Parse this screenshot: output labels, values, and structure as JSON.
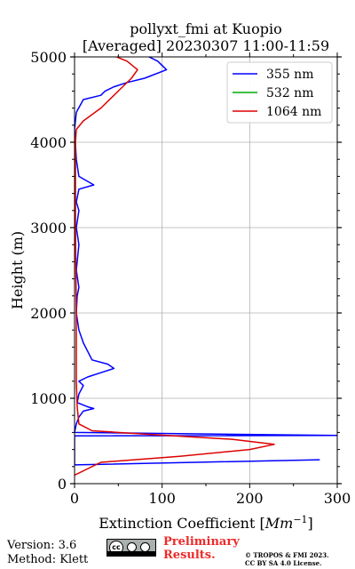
{
  "chart_data": {
    "type": "line",
    "title_line1": "pollyxt_fmi at Kuopio",
    "title_line2": "[Averaged] 20230307 11:00-11:59",
    "xlabel_prefix": "Extinction Coefficient [",
    "xlabel_unit_base": "Mm",
    "xlabel_unit_exp": "−1",
    "xlabel_suffix": "]",
    "ylabel": "Height (m)",
    "xlim": [
      0,
      300
    ],
    "ylim": [
      0,
      5000
    ],
    "x_ticks": [
      "0",
      "100",
      "200",
      "300"
    ],
    "y_ticks": [
      "0",
      "1000",
      "2000",
      "3000",
      "4000",
      "5000"
    ],
    "grid": true,
    "legend_position": "top-right",
    "series": [
      {
        "name": "355 nm",
        "color": "#0000ff",
        "points": [
          [
            280,
            280
          ],
          [
            0,
            220
          ],
          [
            0,
            560
          ],
          [
            300,
            565
          ],
          [
            0,
            600
          ],
          [
            2,
            700
          ],
          [
            5,
            780
          ],
          [
            10,
            850
          ],
          [
            22,
            880
          ],
          [
            15,
            900
          ],
          [
            3,
            950
          ],
          [
            5,
            1050
          ],
          [
            10,
            1150
          ],
          [
            5,
            1200
          ],
          [
            15,
            1250
          ],
          [
            30,
            1300
          ],
          [
            45,
            1350
          ],
          [
            38,
            1400
          ],
          [
            20,
            1450
          ],
          [
            15,
            1550
          ],
          [
            10,
            1650
          ],
          [
            5,
            1800
          ],
          [
            2,
            2000
          ],
          [
            3,
            2200
          ],
          [
            5,
            2300
          ],
          [
            2,
            2500
          ],
          [
            5,
            2800
          ],
          [
            2,
            3000
          ],
          [
            5,
            3200
          ],
          [
            2,
            3300
          ],
          [
            5,
            3450
          ],
          [
            22,
            3500
          ],
          [
            5,
            3600
          ],
          [
            2,
            3800
          ],
          [
            0,
            4150
          ],
          [
            2,
            4350
          ],
          [
            10,
            4500
          ],
          [
            30,
            4550
          ],
          [
            35,
            4600
          ],
          [
            45,
            4650
          ],
          [
            60,
            4700
          ],
          [
            80,
            4750
          ],
          [
            105,
            4850
          ],
          [
            95,
            4950
          ],
          [
            85,
            5000
          ]
        ]
      },
      {
        "name": "532 nm",
        "color": "#00aa00",
        "points": []
      },
      {
        "name": "1064 nm",
        "color": "#dd0000",
        "points": [
          [
            0,
            100
          ],
          [
            30,
            250
          ],
          [
            120,
            320
          ],
          [
            200,
            400
          ],
          [
            228,
            460
          ],
          [
            180,
            520
          ],
          [
            80,
            580
          ],
          [
            20,
            620
          ],
          [
            5,
            700
          ],
          [
            3,
            900
          ],
          [
            2,
            1200
          ],
          [
            2,
            2000
          ],
          [
            1,
            3000
          ],
          [
            1,
            4000
          ],
          [
            2,
            4150
          ],
          [
            10,
            4250
          ],
          [
            30,
            4400
          ],
          [
            50,
            4600
          ],
          [
            65,
            4750
          ],
          [
            72,
            4850
          ],
          [
            60,
            4950
          ],
          [
            48,
            5000
          ]
        ]
      }
    ]
  },
  "footer": {
    "version": "Version: 3.6",
    "method": "Method: Klett",
    "prelim_line1": "Preliminary",
    "prelim_line2": "Results.",
    "copyright_line1": "© TROPOS & FMI 2023.",
    "copyright_line2": "CC BY SA 4.0 License.",
    "license_icon_label": "cc"
  }
}
